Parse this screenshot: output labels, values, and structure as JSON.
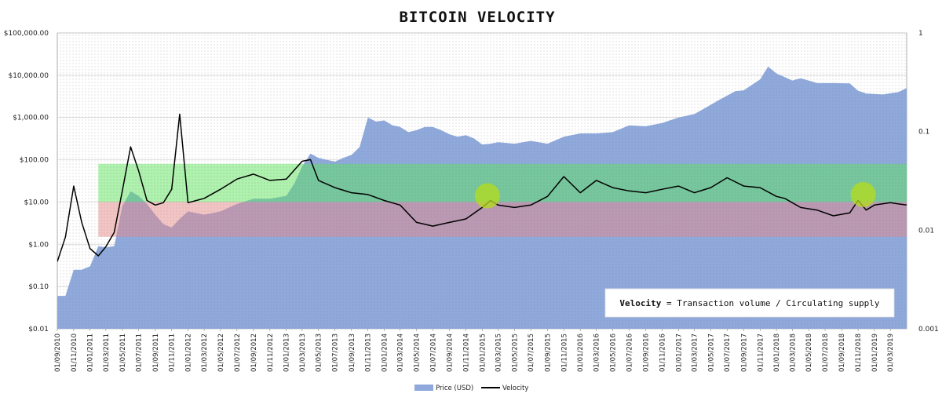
{
  "chart_data": {
    "type": "area",
    "title": "BITCOIN VELOCITY",
    "left_axis": {
      "scale": "log",
      "range": [
        0.01,
        100000
      ],
      "tick_values": [
        0.01,
        0.1,
        1,
        10,
        100,
        1000,
        10000,
        100000
      ],
      "tick_labels": [
        "$0.01",
        "$0.10",
        "$1.00",
        "$10.00",
        "$100.00",
        "$1,000.00",
        "$10,000.00",
        "$100,000.00"
      ]
    },
    "right_axis": {
      "scale": "log",
      "range": [
        0.001,
        1
      ],
      "tick_values": [
        0.001,
        0.01,
        0.1,
        1
      ],
      "tick_labels": [
        "0.001",
        "0.01",
        "0.1",
        "1"
      ]
    },
    "x_axis": {
      "range": [
        "2010-09-01",
        "2019-05-01"
      ],
      "tick_labels": [
        "01/09/2010",
        "01/11/2010",
        "01/01/2011",
        "01/03/2011",
        "01/05/2011",
        "01/07/2011",
        "01/09/2011",
        "01/11/2011",
        "01/01/2012",
        "01/03/2012",
        "01/05/2012",
        "01/07/2012",
        "01/09/2012",
        "01/11/2012",
        "01/01/2013",
        "01/03/2013",
        "01/05/2013",
        "01/07/2013",
        "01/09/2013",
        "01/11/2013",
        "01/01/2014",
        "01/03/2014",
        "01/05/2014",
        "01/07/2014",
        "01/09/2014",
        "01/11/2014",
        "01/01/2015",
        "01/03/2015",
        "01/05/2015",
        "01/07/2015",
        "01/09/2015",
        "01/11/2015",
        "01/01/2016",
        "01/03/2016",
        "01/05/2016",
        "01/07/2016",
        "01/09/2016",
        "01/11/2016",
        "01/01/2017",
        "01/03/2017",
        "01/05/2017",
        "01/07/2017",
        "01/09/2017",
        "01/11/2017",
        "01/01/2018",
        "01/03/2018",
        "01/05/2018",
        "01/07/2018",
        "01/09/2018",
        "01/11/2018",
        "01/01/2019",
        "01/03/2019"
      ]
    },
    "series": [
      {
        "name": "Price (USD)",
        "type": "area",
        "axis": "left",
        "color": "#8fa9dc",
        "x": [
          "2010-09-01",
          "2010-10-01",
          "2010-11-01",
          "2010-12-01",
          "2011-01-01",
          "2011-02-01",
          "2011-03-01",
          "2011-04-01",
          "2011-05-01",
          "2011-06-01",
          "2011-07-01",
          "2011-08-01",
          "2011-09-01",
          "2011-10-01",
          "2011-11-01",
          "2011-12-01",
          "2012-01-01",
          "2012-03-01",
          "2012-05-01",
          "2012-07-01",
          "2012-09-01",
          "2012-11-01",
          "2013-01-01",
          "2013-02-01",
          "2013-03-01",
          "2013-04-01",
          "2013-05-01",
          "2013-06-01",
          "2013-07-01",
          "2013-08-01",
          "2013-09-01",
          "2013-10-01",
          "2013-11-01",
          "2013-12-01",
          "2014-01-01",
          "2014-02-01",
          "2014-03-01",
          "2014-04-01",
          "2014-05-01",
          "2014-06-01",
          "2014-07-01",
          "2014-08-01",
          "2014-09-01",
          "2014-10-01",
          "2014-11-01",
          "2014-12-01",
          "2015-01-01",
          "2015-02-01",
          "2015-03-01",
          "2015-05-01",
          "2015-07-01",
          "2015-09-01",
          "2015-11-01",
          "2016-01-01",
          "2016-03-01",
          "2016-05-01",
          "2016-07-01",
          "2016-09-01",
          "2016-11-01",
          "2017-01-01",
          "2017-03-01",
          "2017-05-01",
          "2017-06-01",
          "2017-08-01",
          "2017-09-01",
          "2017-11-01",
          "2017-12-01",
          "2018-01-01",
          "2018-02-01",
          "2018-03-01",
          "2018-04-01",
          "2018-05-01",
          "2018-06-01",
          "2018-08-01",
          "2018-10-01",
          "2018-11-01",
          "2018-12-01",
          "2019-02-01",
          "2019-04-01",
          "2019-05-01"
        ],
        "values": [
          0.06,
          0.06,
          0.25,
          0.25,
          0.3,
          0.9,
          0.85,
          0.9,
          8,
          18,
          14,
          9,
          5,
          3,
          2.5,
          4,
          6,
          5,
          6,
          9,
          12,
          12,
          14,
          28,
          70,
          140,
          110,
          100,
          90,
          110,
          130,
          200,
          1000,
          800,
          850,
          650,
          600,
          450,
          500,
          600,
          600,
          500,
          400,
          350,
          380,
          320,
          230,
          240,
          260,
          240,
          280,
          240,
          350,
          420,
          420,
          450,
          650,
          620,
          740,
          1000,
          1200,
          2000,
          2600,
          4200,
          4400,
          8000,
          16000,
          11000,
          9000,
          7500,
          8500,
          7500,
          6500,
          6500,
          6400,
          4300,
          3700,
          3500,
          4000,
          5000
        ]
      },
      {
        "name": "Velocity",
        "type": "line",
        "axis": "right",
        "color": "#000000",
        "x": [
          "2010-09-01",
          "2010-10-01",
          "2010-11-01",
          "2010-12-01",
          "2011-01-01",
          "2011-02-01",
          "2011-03-01",
          "2011-04-01",
          "2011-05-01",
          "2011-06-01",
          "2011-07-01",
          "2011-08-01",
          "2011-09-01",
          "2011-10-01",
          "2011-11-01",
          "2011-12-01",
          "2012-01-01",
          "2012-03-01",
          "2012-05-01",
          "2012-07-01",
          "2012-09-01",
          "2012-11-01",
          "2013-01-01",
          "2013-03-01",
          "2013-04-01",
          "2013-05-01",
          "2013-07-01",
          "2013-09-01",
          "2013-11-01",
          "2014-01-01",
          "2014-03-01",
          "2014-05-01",
          "2014-07-01",
          "2014-09-01",
          "2014-11-01",
          "2015-01-01",
          "2015-02-01",
          "2015-03-01",
          "2015-05-01",
          "2015-07-01",
          "2015-09-01",
          "2015-11-01",
          "2016-01-01",
          "2016-03-01",
          "2016-05-01",
          "2016-07-01",
          "2016-09-01",
          "2016-11-01",
          "2017-01-01",
          "2017-03-01",
          "2017-05-01",
          "2017-07-01",
          "2017-09-01",
          "2017-11-01",
          "2018-01-01",
          "2018-02-01",
          "2018-04-01",
          "2018-06-01",
          "2018-08-01",
          "2018-10-01",
          "2018-11-01",
          "2018-12-01",
          "2019-01-01",
          "2019-03-01",
          "2019-05-01"
        ],
        "values": [
          0.0048,
          0.0085,
          0.028,
          0.012,
          0.0065,
          0.0055,
          0.0068,
          0.0095,
          0.025,
          0.07,
          0.04,
          0.02,
          0.018,
          0.019,
          0.026,
          0.15,
          0.019,
          0.021,
          0.026,
          0.033,
          0.037,
          0.032,
          0.033,
          0.05,
          0.052,
          0.032,
          0.027,
          0.024,
          0.023,
          0.02,
          0.018,
          0.012,
          0.011,
          0.012,
          0.013,
          0.017,
          0.02,
          0.018,
          0.017,
          0.018,
          0.022,
          0.035,
          0.024,
          0.032,
          0.027,
          0.025,
          0.024,
          0.026,
          0.028,
          0.024,
          0.027,
          0.034,
          0.028,
          0.027,
          0.022,
          0.021,
          0.017,
          0.016,
          0.014,
          0.015,
          0.02,
          0.016,
          0.018,
          0.019,
          0.018
        ]
      }
    ],
    "bands": [
      {
        "label_color": "green",
        "color": "#5ee65e",
        "left_range": [
          10,
          80
        ],
        "x_range": [
          "2011-02-01",
          "2019-05-01"
        ]
      },
      {
        "label_color": "red",
        "color": "#e88a8a",
        "left_range": [
          1.5,
          10
        ],
        "x_range": [
          "2011-02-01",
          "2019-05-01"
        ]
      }
    ],
    "highlights": [
      {
        "x": "2015-01-20",
        "left_value": 14,
        "color": "#b5dc1a"
      },
      {
        "x": "2018-11-20",
        "left_value": 15,
        "color": "#b5dc1a"
      }
    ],
    "annotation": {
      "bold": "Velocity",
      "rest": " = Transaction volume / Circulating supply"
    },
    "legend": {
      "placement": "bottom",
      "items": [
        "Price (USD)",
        "Velocity"
      ]
    },
    "grid": true
  }
}
